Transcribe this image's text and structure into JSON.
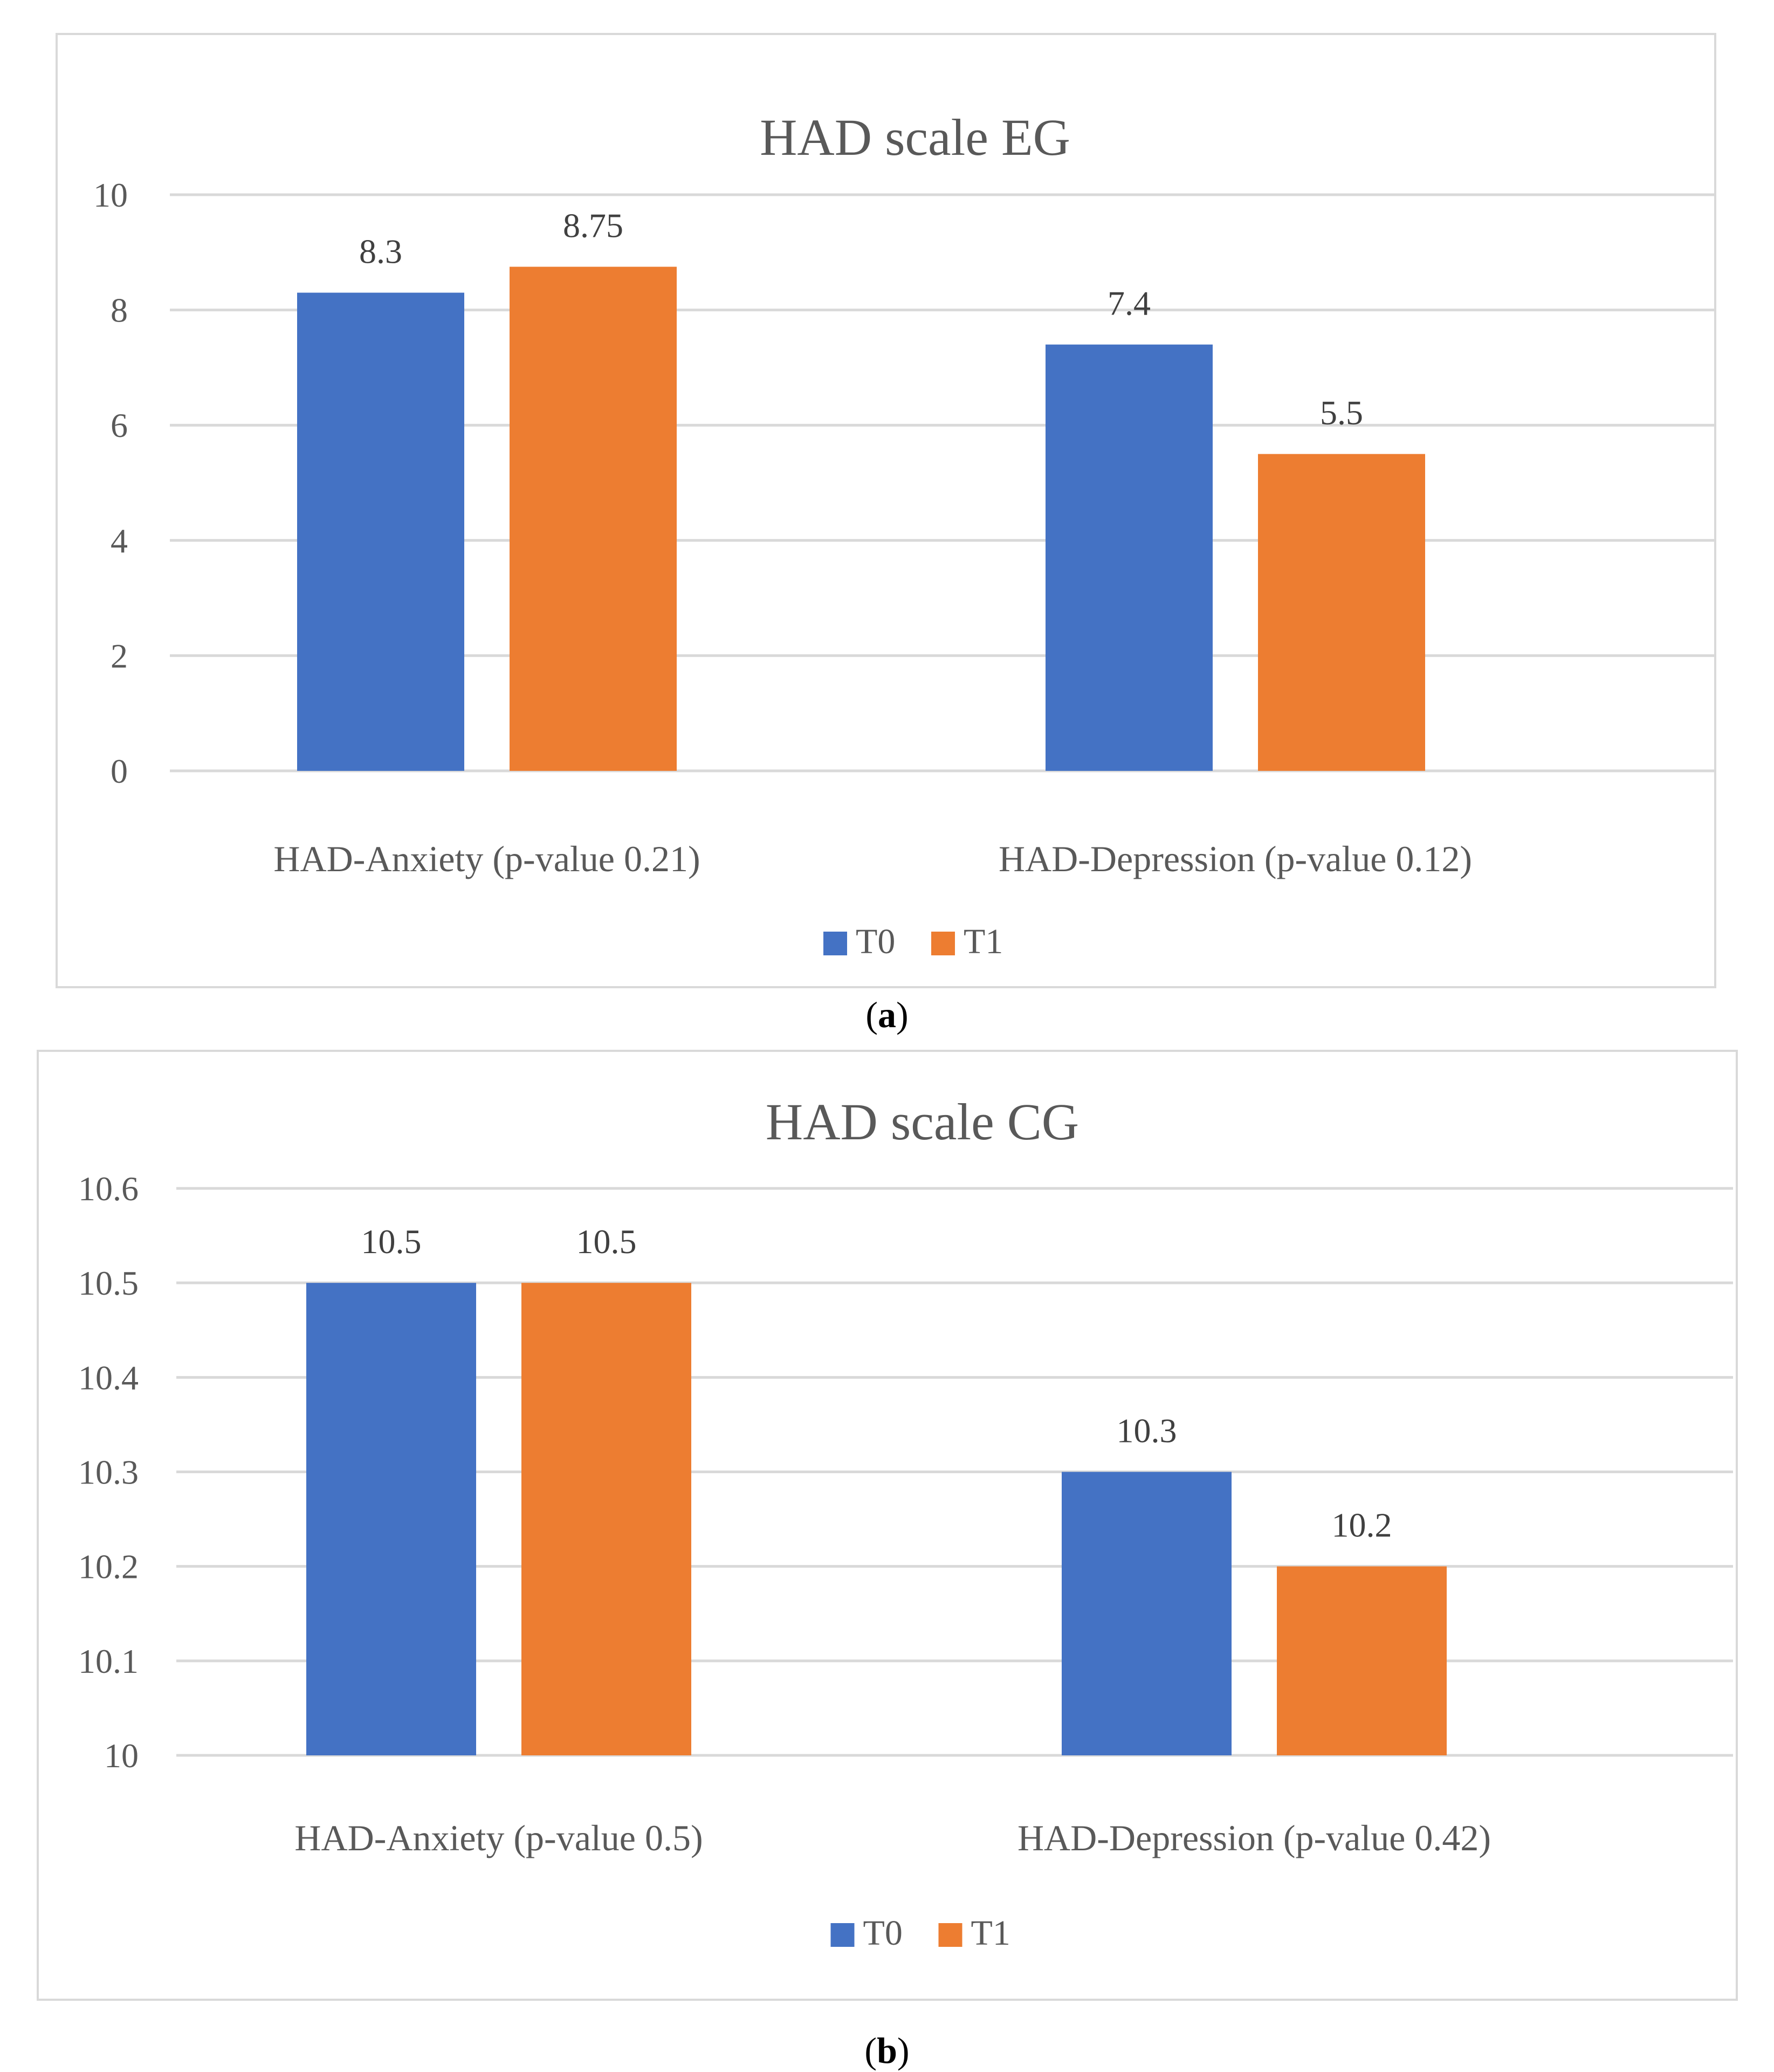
{
  "chart_data": [
    {
      "type": "bar",
      "title": "HAD scale EG",
      "categories": [
        "HAD-Anxiety (p-value 0.21)",
        "HAD-Depression (p-value 0.12)"
      ],
      "series": [
        {
          "name": "T0",
          "values": [
            8.3,
            7.4
          ],
          "labels": [
            "8.3",
            "7.4"
          ],
          "color": "#4472c4"
        },
        {
          "name": "T1",
          "values": [
            8.75,
            5.5
          ],
          "labels": [
            "8.75",
            "5.5"
          ],
          "color": "#ed7d31"
        }
      ],
      "ylim": [
        0,
        10
      ],
      "yticks": [
        "0",
        "2",
        "4",
        "6",
        "8",
        "10"
      ],
      "ytick_values": [
        0,
        2,
        4,
        6,
        8,
        10
      ],
      "xlabel": "",
      "ylabel": "",
      "grid": true,
      "legend": "bottom-center"
    },
    {
      "type": "bar",
      "title": "HAD scale CG",
      "categories": [
        "HAD-Anxiety (p-value 0.5)",
        "HAD-Depression (p-value 0.42)"
      ],
      "series": [
        {
          "name": "T0",
          "values": [
            10.5,
            10.3
          ],
          "labels": [
            "10.5",
            "10.3"
          ],
          "color": "#4472c4"
        },
        {
          "name": "T1",
          "values": [
            10.5,
            10.2
          ],
          "labels": [
            "10.5",
            "10.2"
          ],
          "color": "#ed7d31"
        }
      ],
      "ylim": [
        10,
        10.6
      ],
      "yticks": [
        "10",
        "10.1",
        "10.2",
        "10.3",
        "10.4",
        "10.5",
        "10.6"
      ],
      "ytick_values": [
        10,
        10.1,
        10.2,
        10.3,
        10.4,
        10.5,
        10.6
      ],
      "xlabel": "",
      "ylabel": "",
      "grid": true,
      "legend": "bottom-center"
    }
  ],
  "captions": {
    "a": {
      "open": "(",
      "letter": "a",
      "close": ")"
    },
    "b": {
      "open": "(",
      "letter": "b",
      "close": ")"
    }
  },
  "colors": {
    "grid": "#d9d9d9",
    "text": "#595959",
    "title": "#595959"
  }
}
